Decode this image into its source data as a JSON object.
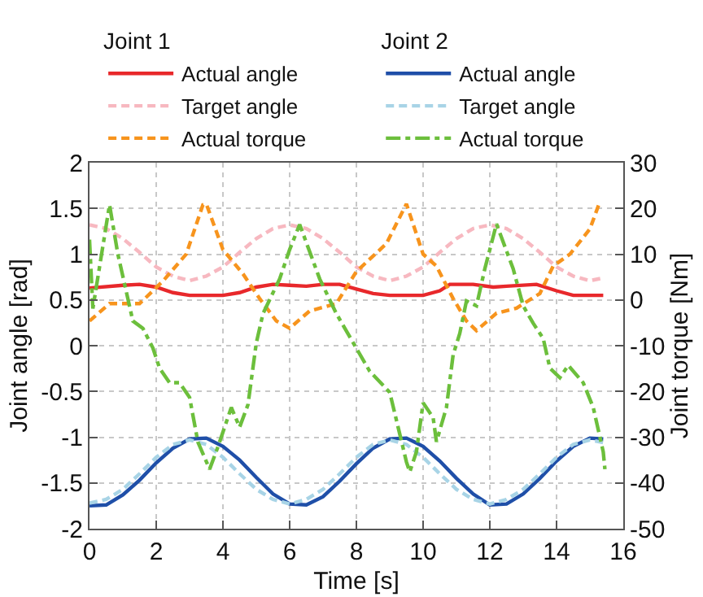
{
  "chart_data": {
    "type": "line",
    "xlabel": "Time [s]",
    "ylabel": "Joint angle [rad]",
    "y2label": "Joint torque [Nm]",
    "legend_title": [
      "Joint 1",
      "Joint 2"
    ],
    "xlim": [
      0,
      16
    ],
    "xticks": [
      0,
      2,
      4,
      6,
      8,
      10,
      12,
      14,
      16
    ],
    "ylim": [
      -2,
      2
    ],
    "yticks": [
      -2,
      -1.5,
      -1,
      -0.5,
      0,
      0.5,
      1,
      1.5,
      2
    ],
    "y2lim": [
      -50,
      30
    ],
    "y2ticks": [
      -50,
      -40,
      -30,
      -20,
      -10,
      0,
      10,
      20,
      30
    ],
    "grid": true,
    "legend": "top",
    "marker": "none",
    "series": [
      {
        "name": "Actual angle",
        "color": "#e8282b",
        "line_style": "solid",
        "x": [
          0,
          1,
          1.5,
          2,
          2.5,
          3,
          4,
          4.5,
          5,
          5.5,
          6,
          6.5,
          7,
          7.5,
          8,
          8.5,
          9,
          10,
          10.5,
          10.8,
          11.5,
          12.1,
          12.5,
          13.4,
          14,
          14.5,
          15.4
        ],
        "values": [
          0.63,
          0.66,
          0.67,
          0.64,
          0.58,
          0.55,
          0.55,
          0.58,
          0.64,
          0.67,
          0.66,
          0.65,
          0.67,
          0.67,
          0.62,
          0.57,
          0.55,
          0.55,
          0.6,
          0.67,
          0.67,
          0.64,
          0.65,
          0.67,
          0.6,
          0.55,
          0.55
        ]
      },
      {
        "name": "Target angle",
        "color": "#f7b8c0",
        "line_style": "dashed",
        "x": [
          0,
          0.5,
          1,
          1.5,
          2,
          2.5,
          3,
          3.5,
          4,
          4.5,
          5,
          5.5,
          6,
          6.5,
          7,
          7.5,
          8,
          8.5,
          9,
          9.5,
          10,
          10.5,
          11,
          11.5,
          12,
          12.5,
          13,
          13.5,
          14,
          14.5,
          15,
          15.4
        ],
        "values": [
          1.32,
          1.28,
          1.17,
          1.02,
          0.86,
          0.76,
          0.71,
          0.76,
          0.86,
          1.02,
          1.17,
          1.28,
          1.32,
          1.28,
          1.17,
          1.02,
          0.86,
          0.76,
          0.71,
          0.76,
          0.86,
          1.02,
          1.17,
          1.28,
          1.32,
          1.28,
          1.17,
          1.02,
          0.86,
          0.76,
          0.71,
          0.74
        ]
      },
      {
        "name": "Actual torque",
        "color": "#f7941d",
        "line_style": "dashed",
        "axis": "y2",
        "x": [
          0,
          0.6,
          1.5,
          2.2,
          2.9,
          3.4,
          3.5,
          4,
          4.6,
          5.1,
          5.6,
          6,
          6.6,
          7.4,
          8,
          8.9,
          9.5,
          10,
          10.4,
          10.9,
          11.3,
          11.6,
          12.2,
          12.8,
          13.5,
          13.9,
          14.4,
          15,
          15.3
        ],
        "values": [
          -4.6,
          -0.8,
          -0.8,
          4.1,
          10,
          20.8,
          21,
          11,
          5.7,
          0.3,
          -4.6,
          -6.2,
          -2.4,
          -0.8,
          6.2,
          12.3,
          21,
          10,
          7.4,
          0.3,
          -4.6,
          -6.7,
          -2.9,
          -1.8,
          1.4,
          7.4,
          10,
          15.5,
          21.5
        ]
      },
      {
        "name": "Actual angle",
        "color": "#1f4fa8",
        "line_style": "solid",
        "x": [
          0,
          0.5,
          1,
          1.5,
          2,
          2.5,
          3,
          3.5,
          4,
          4.5,
          5,
          5.5,
          6,
          6.5,
          7,
          7.5,
          8,
          8.5,
          9,
          9.5,
          10,
          10.5,
          11,
          11.5,
          12,
          12.5,
          13,
          13.5,
          14,
          14.5,
          15,
          15.4
        ],
        "values": [
          -1.75,
          -1.74,
          -1.63,
          -1.47,
          -1.28,
          -1.12,
          -1.02,
          -1.01,
          -1.1,
          -1.25,
          -1.44,
          -1.62,
          -1.73,
          -1.74,
          -1.65,
          -1.48,
          -1.29,
          -1.12,
          -1.02,
          -1.01,
          -1.1,
          -1.26,
          -1.45,
          -1.62,
          -1.74,
          -1.73,
          -1.62,
          -1.45,
          -1.26,
          -1.1,
          -1.01,
          -1.02
        ]
      },
      {
        "name": "Target angle",
        "color": "#a8d4e6",
        "line_style": "dashed",
        "x": [
          0,
          0.5,
          1,
          1.5,
          2,
          2.5,
          3,
          3.5,
          4,
          4.5,
          5,
          5.5,
          6,
          6.5,
          7,
          7.5,
          8,
          8.5,
          9,
          9.5,
          10,
          10.5,
          11,
          11.5,
          12,
          12.5,
          13,
          13.5,
          14,
          14.5,
          15,
          15.4
        ],
        "values": [
          -1.72,
          -1.68,
          -1.57,
          -1.4,
          -1.22,
          -1.08,
          -1.03,
          -1.08,
          -1.22,
          -1.4,
          -1.57,
          -1.68,
          -1.73,
          -1.68,
          -1.57,
          -1.4,
          -1.22,
          -1.08,
          -1.03,
          -1.08,
          -1.22,
          -1.4,
          -1.57,
          -1.68,
          -1.73,
          -1.68,
          -1.57,
          -1.4,
          -1.22,
          -1.08,
          -1.03,
          -1.06
        ]
      },
      {
        "name": "Actual torque",
        "color": "#6cbf3c",
        "line_style": "dashdot",
        "axis": "y2",
        "x": [
          0,
          0.1,
          0.6,
          0.85,
          1.3,
          1.6,
          1.9,
          2.1,
          2.4,
          2.7,
          3,
          3.25,
          3.6,
          3.85,
          4.25,
          4.5,
          4.75,
          5,
          5.2,
          5.7,
          6,
          6.3,
          6.9,
          7.4,
          7.9,
          8.4,
          9,
          9.25,
          9.5,
          9.6,
          9.8,
          10,
          10.3,
          10.4,
          10.7,
          10.9,
          11.1,
          11.3,
          11.6,
          11.85,
          12.2,
          12.7,
          13,
          13.3,
          13.6,
          13.8,
          14.1,
          14.35,
          14.8,
          15.1,
          15.4,
          15.45
        ],
        "values": [
          13.2,
          -1.9,
          20.8,
          10,
          -4.6,
          -6.2,
          -10.5,
          -14.9,
          -18.1,
          -18.1,
          -21.3,
          -31.1,
          -37,
          -32.1,
          -23.5,
          -27.8,
          -22.9,
          -9.4,
          -3,
          4.6,
          11,
          16.5,
          4.6,
          -3,
          -9.3,
          -15.6,
          -20.2,
          -27.8,
          -35.4,
          -37.6,
          -33.2,
          -22.5,
          -25.7,
          -31,
          -23.5,
          -12,
          -7.3,
          -0.2,
          -1.3,
          6.8,
          16.6,
          6.8,
          -1.3,
          -5.1,
          -8.4,
          -14.9,
          -17,
          -14.3,
          -18.1,
          -23.5,
          -33.2,
          -37
        ]
      }
    ]
  }
}
